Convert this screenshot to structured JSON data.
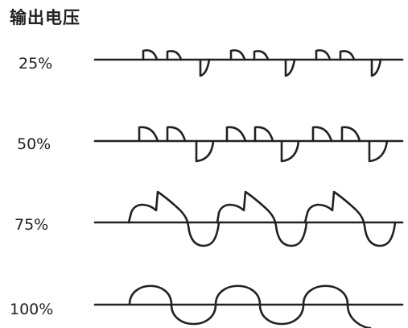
{
  "title": "输出电压",
  "rows": [
    {
      "label": "25%"
    },
    {
      "label": "50%"
    },
    {
      "label": "75%"
    },
    {
      "label": "100%"
    }
  ],
  "colors": {
    "ink": "#222222",
    "background": "#ffffff"
  }
}
